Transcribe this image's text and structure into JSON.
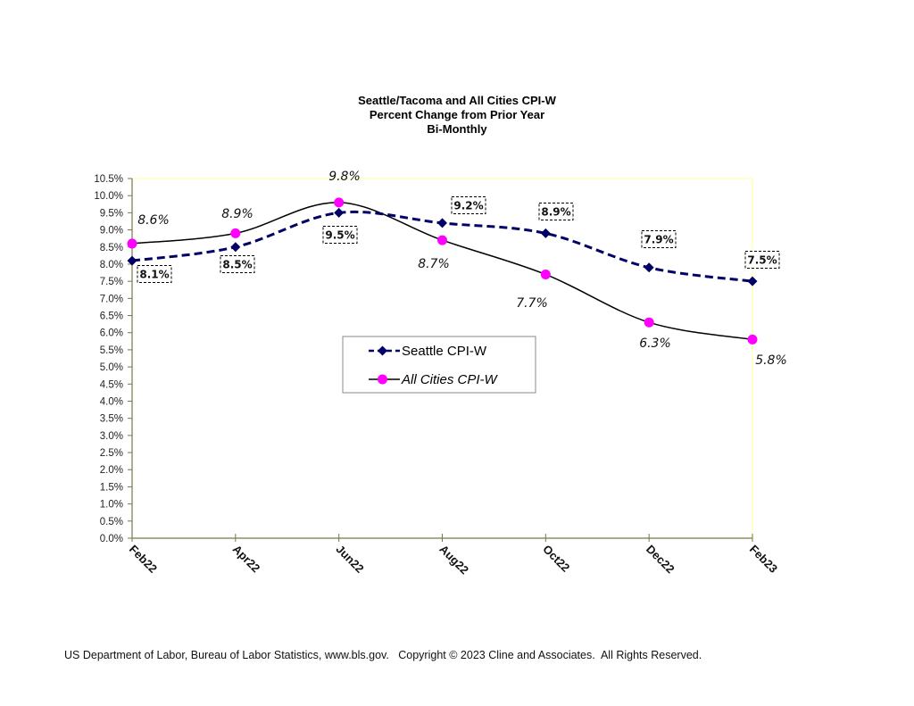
{
  "chart_data": {
    "type": "line",
    "title": [
      "Seattle/Tacoma and All Cities CPI-W",
      "Percent Change from Prior Year",
      "Bi-Monthly"
    ],
    "xlabel": "",
    "ylabel": "",
    "categories": [
      "Feb22",
      "Apr22",
      "Jun22",
      "Aug22",
      "Oct22",
      "Dec22",
      "Feb23"
    ],
    "ylim": [
      0,
      10.5
    ],
    "ytick_step": 0.5,
    "ytick_labels": [
      "0.0%",
      "0.5%",
      "1.0%",
      "1.5%",
      "2.0%",
      "2.5%",
      "3.0%",
      "3.5%",
      "4.0%",
      "4.5%",
      "5.0%",
      "5.5%",
      "6.0%",
      "6.5%",
      "7.0%",
      "7.5%",
      "8.0%",
      "8.5%",
      "9.0%",
      "9.5%",
      "10.0%",
      "10.5%"
    ],
    "grid": false,
    "legend_position": "center",
    "series": [
      {
        "name": "Seattle CPI-W",
        "values": [
          8.1,
          8.5,
          9.5,
          9.2,
          8.9,
          7.9,
          7.5
        ],
        "data_labels": [
          "8.1%",
          "8.5%",
          "9.5%",
          "9.2%",
          "8.9%",
          "7.9%",
          "7.5%"
        ],
        "color": "#000066",
        "line_style": "dashed",
        "marker": "diamond"
      },
      {
        "name": "All Cities CPI-W",
        "values": [
          8.6,
          8.9,
          9.8,
          8.7,
          7.7,
          6.3,
          5.8
        ],
        "data_labels": [
          "8.6%",
          "8.9%",
          "9.8%",
          "8.7%",
          "7.7%",
          "6.3%",
          "5.8%"
        ],
        "color": "#000000",
        "marker_color": "#FF00FF",
        "line_style": "solid",
        "marker": "circle"
      }
    ]
  },
  "footer": {
    "source": "US Department of Labor, Bureau of Labor Statistics, www.bls.gov.   Copyright © 2023 Cline and Associates.  All Rights Reserved."
  }
}
